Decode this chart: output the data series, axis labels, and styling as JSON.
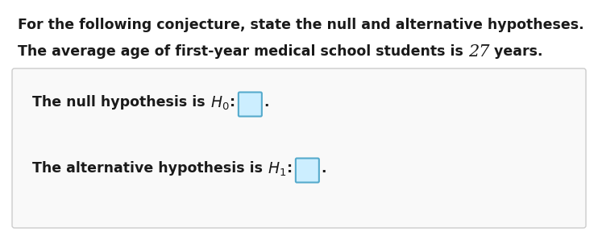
{
  "bg_color": "#ffffff",
  "top_text1": "For the following conjecture, state the null and alternative hypotheses.",
  "top_text2_prefix": "The average age of first-year medical school students is ",
  "top_text2_number": "27",
  "top_text2_suffix": " years.",
  "null_prefix": "The null hypothesis is ",
  "alt_prefix": "The alternative hypothesis is ",
  "colon": ":",
  "period": ".",
  "input_box_fill": "#cceeff",
  "input_box_edge": "#55aacc",
  "box_fill": "#f9f9f9",
  "box_edge": "#cccccc",
  "text_color": "#1a1a1a",
  "font_size": 12.5,
  "number_font_size": 15
}
